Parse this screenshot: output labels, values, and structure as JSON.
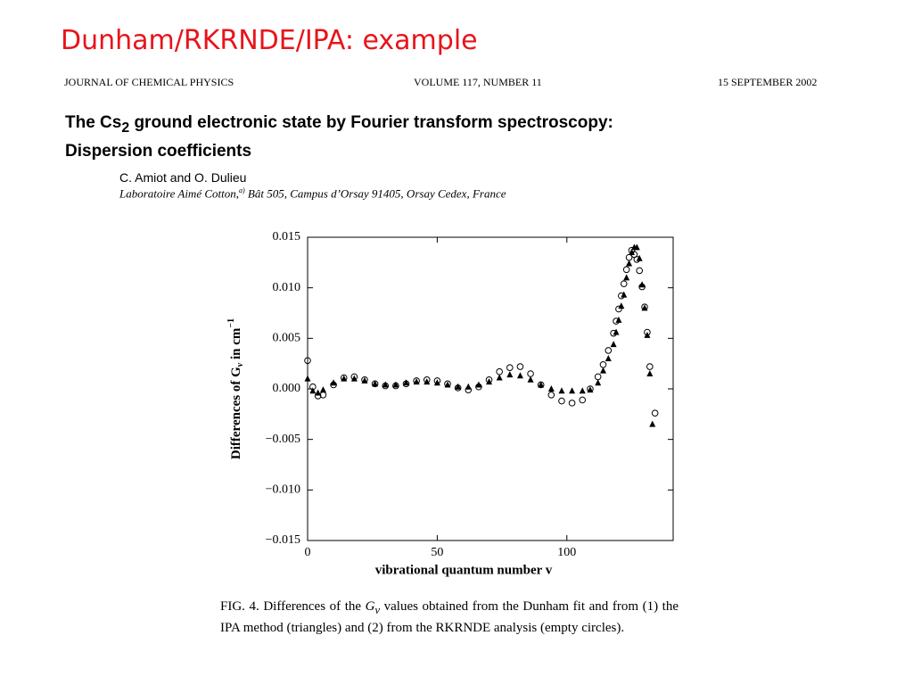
{
  "slide_title": "Dunham/RKRNDE/IPA: example",
  "journal": {
    "name": "JOURNAL OF CHEMICAL PHYSICS",
    "volume": "VOLUME 117, NUMBER 11",
    "date": "15 SEPTEMBER 2002"
  },
  "paper_title": {
    "before": "The Cs",
    "sub": "2",
    "after": " ground electronic state by Fourier transform spectroscopy:",
    "line2": "Dispersion coefficients"
  },
  "authors": "C. Amiot and O. Dulieu",
  "affiliation": {
    "before": "Laboratoire Aimé Cotton,",
    "sup": "a)",
    "after": " Bât 505, Campus d’Orsay 91405, Orsay Cedex, France"
  },
  "caption": {
    "before": "FIG. 4. Differences of the ",
    "var": "G",
    "sub": "v",
    "after": " values obtained from the Dunham fit and from (1) the IPA method (triangles) and (2) from the RKRNDE analysis (empty circles)."
  },
  "chart_data": {
    "type": "scatter",
    "xlabel": "vibrational quantum number  v",
    "ylabel": {
      "before": "Differences of G",
      "sub": "v",
      "mid": " in cm",
      "sup": "−1"
    },
    "xlim": [
      0,
      141
    ],
    "ylim": [
      -0.015,
      0.015
    ],
    "xticks": [
      0,
      50,
      100
    ],
    "yticks": [
      {
        "value": -0.015,
        "label": "−0.015"
      },
      {
        "value": -0.01,
        "label": "−0.010"
      },
      {
        "value": -0.005,
        "label": "−0.005"
      },
      {
        "value": 0,
        "label": "0.000"
      },
      0.005,
      {
        "value": 0.01,
        "label": "0.010"
      },
      0.015
    ],
    "series": [
      {
        "marker": "triangle",
        "color": "#000000",
        "x": [
          0,
          2,
          4,
          6,
          10,
          14,
          18,
          22,
          26,
          30,
          34,
          38,
          42,
          46,
          50,
          54,
          58,
          62,
          66,
          70,
          74,
          78,
          82,
          86,
          90,
          94,
          98,
          102,
          106,
          109,
          112,
          114,
          116,
          118,
          119,
          120,
          121,
          122,
          123,
          124,
          125,
          126,
          127,
          128,
          129,
          130,
          131,
          132,
          133
        ],
        "values": [
          0.001,
          -0.0002,
          -0.0004,
          -0.0001,
          0.0006,
          0.001,
          0.001,
          0.0008,
          0.0005,
          0.0004,
          0.0004,
          0.0006,
          0.0007,
          0.0007,
          0.0006,
          0.0004,
          0.0002,
          0.0002,
          0.0004,
          0.0007,
          0.0011,
          0.0014,
          0.0013,
          0.0009,
          0.0004,
          0,
          -0.0002,
          -0.0002,
          -0.0002,
          -0.0001,
          0.0006,
          0.0018,
          0.003,
          0.0044,
          0.0056,
          0.0068,
          0.0082,
          0.0093,
          0.011,
          0.0124,
          0.0135,
          0.014,
          0.014,
          0.0129,
          0.0103,
          0.008,
          0.0053,
          0.0015,
          -0.0035
        ]
      },
      {
        "marker": "circle",
        "color": "#000000",
        "x": [
          0,
          2,
          4,
          6,
          10,
          14,
          18,
          22,
          26,
          30,
          34,
          38,
          42,
          46,
          50,
          54,
          58,
          62,
          66,
          70,
          74,
          78,
          82,
          86,
          90,
          94,
          98,
          102,
          106,
          109,
          112,
          114,
          116,
          118,
          119,
          120,
          121,
          122,
          123,
          124,
          125,
          126,
          127,
          128,
          129,
          130,
          131,
          132,
          134
        ],
        "values": [
          0.0028,
          0.0002,
          -0.0007,
          -0.0006,
          0.0004,
          0.0011,
          0.0012,
          0.0009,
          0.0005,
          0.0003,
          0.0003,
          0.0005,
          0.0008,
          0.0009,
          0.0008,
          0.0005,
          0.0001,
          -0.0001,
          0.0002,
          0.0009,
          0.0017,
          0.0021,
          0.0022,
          0.0015,
          0.0004,
          -0.0006,
          -0.0012,
          -0.0014,
          -0.0011,
          0,
          0.0012,
          0.0024,
          0.0038,
          0.0055,
          0.0067,
          0.0079,
          0.0092,
          0.0104,
          0.0118,
          0.013,
          0.0137,
          0.0133,
          0.0128,
          0.0117,
          0.0101,
          0.0081,
          0.0056,
          0.0022,
          -0.0024
        ]
      }
    ]
  }
}
